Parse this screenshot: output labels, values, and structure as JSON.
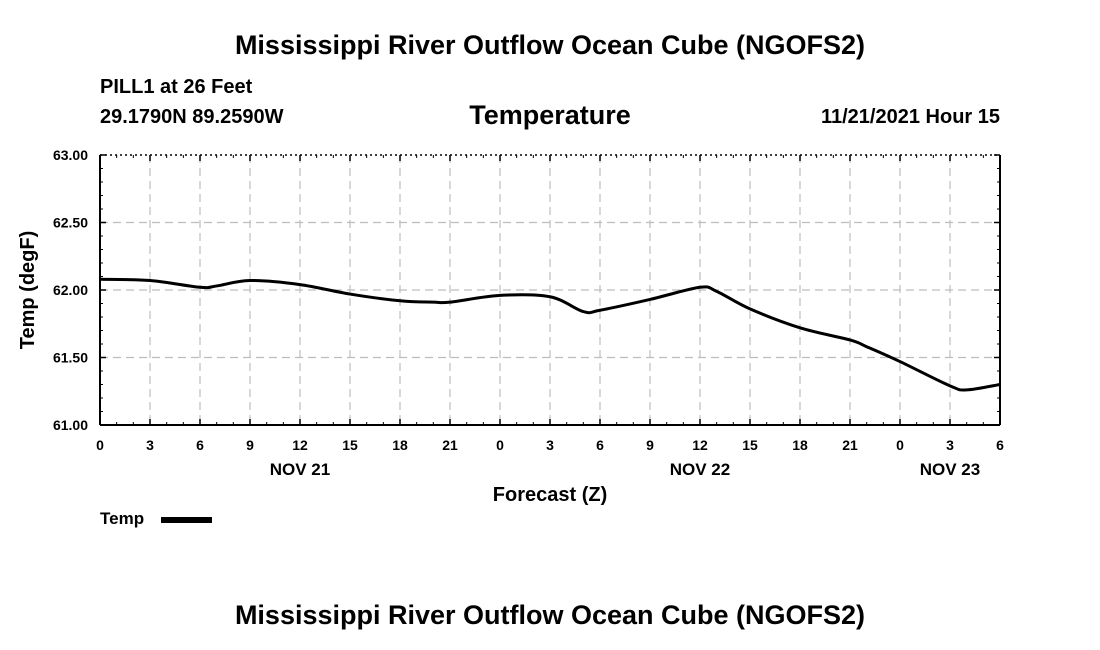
{
  "header": {
    "title": "Mississippi River Outflow Ocean Cube (NGOFS2)",
    "station": "PILL1 at 26 Feet",
    "coordinates": "29.1790N  89.2590W",
    "variable": "Temperature",
    "datetime": "11/21/2021 Hour 15"
  },
  "footer": {
    "title": "Mississippi River Outflow Ocean Cube (NGOFS2)"
  },
  "legend": {
    "label": "Temp"
  },
  "chart_data": {
    "type": "line",
    "title": "Temperature",
    "xlabel": "Forecast (Z)",
    "ylabel": "Temp (degF)",
    "ylim": [
      61.0,
      63.0
    ],
    "xlim": [
      0,
      54
    ],
    "grid": true,
    "legend_position": "bottom-left",
    "y_ticks": [
      "61.00",
      "61.50",
      "62.00",
      "62.50",
      "63.00"
    ],
    "x_tick_labels": [
      "0",
      "3",
      "6",
      "9",
      "12",
      "15",
      "18",
      "21",
      "0",
      "3",
      "6",
      "9",
      "12",
      "15",
      "18",
      "21",
      "0",
      "3",
      "6"
    ],
    "day_labels": [
      {
        "label": "NOV 21",
        "hour": 12
      },
      {
        "label": "NOV 22",
        "hour": 36
      },
      {
        "label": "NOV 23",
        "hour": 51
      }
    ],
    "series": [
      {
        "name": "Temp",
        "color": "#000000",
        "x": [
          0,
          3,
          6,
          7,
          9,
          12,
          15,
          18,
          20,
          21,
          24,
          27,
          29,
          30,
          33,
          36,
          37,
          39,
          42,
          45,
          46,
          48,
          51,
          52,
          54
        ],
        "values": [
          62.08,
          62.07,
          62.02,
          62.03,
          62.07,
          62.04,
          61.97,
          61.92,
          61.91,
          61.91,
          61.96,
          61.95,
          61.84,
          61.85,
          61.93,
          62.02,
          61.99,
          61.86,
          61.72,
          61.63,
          61.58,
          61.47,
          61.29,
          61.26,
          61.3
        ]
      }
    ]
  }
}
